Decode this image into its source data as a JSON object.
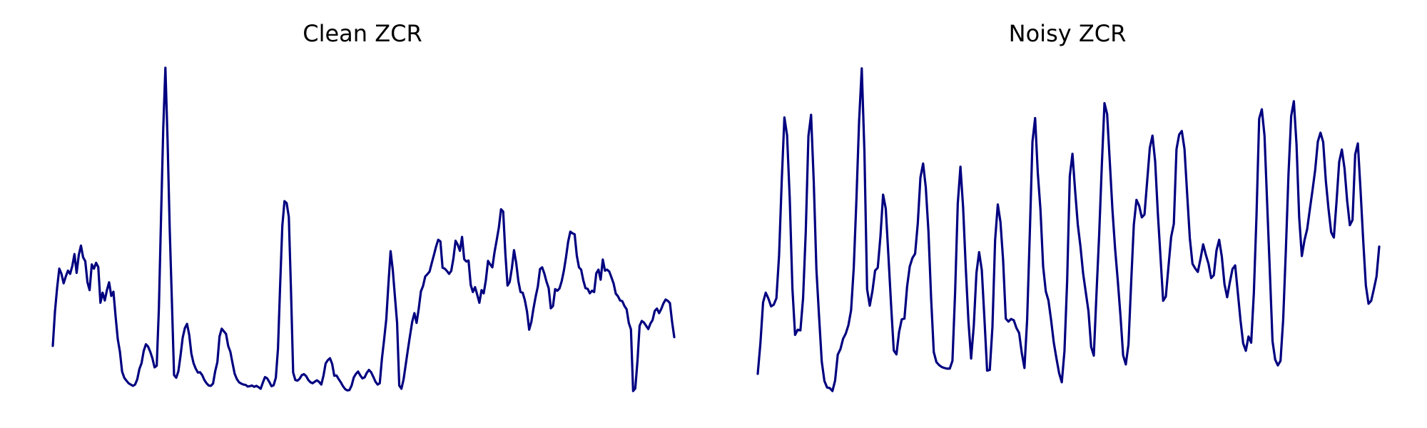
{
  "chart_data": [
    {
      "type": "line",
      "title": "Clean ZCR",
      "axes_visible": false,
      "line_color": "#000080",
      "y_range": [
        0.0,
        1.0
      ],
      "series": [
        {
          "values": [
            0.143,
            0.249,
            0.322,
            0.381,
            0.365,
            0.336,
            0.357,
            0.375,
            0.365,
            0.389,
            0.426,
            0.368,
            0.423,
            0.452,
            0.416,
            0.404,
            0.339,
            0.315,
            0.394,
            0.381,
            0.399,
            0.386,
            0.276,
            0.307,
            0.283,
            0.315,
            0.339,
            0.297,
            0.31,
            0.234,
            0.164,
            0.125,
            0.064,
            0.045,
            0.036,
            0.028,
            0.024,
            0.02,
            0.024,
            0.04,
            0.072,
            0.09,
            0.128,
            0.148,
            0.141,
            0.125,
            0.105,
            0.077,
            0.082,
            0.261,
            0.541,
            0.812,
            1.0,
            0.777,
            0.502,
            0.28,
            0.053,
            0.045,
            0.065,
            0.114,
            0.169,
            0.198,
            0.211,
            0.177,
            0.119,
            0.09,
            0.073,
            0.061,
            0.062,
            0.053,
            0.038,
            0.028,
            0.021,
            0.02,
            0.027,
            0.065,
            0.093,
            0.172,
            0.196,
            0.188,
            0.18,
            0.143,
            0.125,
            0.09,
            0.057,
            0.041,
            0.031,
            0.027,
            0.024,
            0.023,
            0.018,
            0.019,
            0.021,
            0.017,
            0.02,
            0.016,
            0.011,
            0.03,
            0.047,
            0.043,
            0.032,
            0.019,
            0.022,
            0.045,
            0.135,
            0.332,
            0.513,
            0.589,
            0.583,
            0.54,
            0.315,
            0.061,
            0.038,
            0.036,
            0.042,
            0.053,
            0.056,
            0.05,
            0.038,
            0.031,
            0.028,
            0.033,
            0.037,
            0.032,
            0.024,
            0.051,
            0.089,
            0.099,
            0.105,
            0.088,
            0.051,
            0.052,
            0.041,
            0.031,
            0.019,
            0.01,
            0.006,
            0.007,
            0.021,
            0.046,
            0.057,
            0.064,
            0.052,
            0.043,
            0.046,
            0.06,
            0.069,
            0.062,
            0.048,
            0.033,
            0.024,
            0.028,
            0.104,
            0.162,
            0.225,
            0.334,
            0.435,
            0.378,
            0.295,
            0.214,
            0.021,
            0.011,
            0.04,
            0.086,
            0.132,
            0.176,
            0.218,
            0.244,
            0.214,
            0.258,
            0.311,
            0.328,
            0.357,
            0.364,
            0.372,
            0.398,
            0.423,
            0.449,
            0.47,
            0.465,
            0.384,
            0.381,
            0.374,
            0.365,
            0.374,
            0.412,
            0.467,
            0.455,
            0.436,
            0.479,
            0.41,
            0.403,
            0.406,
            0.331,
            0.309,
            0.324,
            0.301,
            0.276,
            0.315,
            0.305,
            0.346,
            0.405,
            0.394,
            0.385,
            0.432,
            0.469,
            0.508,
            0.564,
            0.557,
            0.428,
            0.329,
            0.34,
            0.382,
            0.438,
            0.399,
            0.343,
            0.309,
            0.307,
            0.284,
            0.249,
            0.193,
            0.217,
            0.259,
            0.295,
            0.326,
            0.38,
            0.385,
            0.366,
            0.341,
            0.321,
            0.259,
            0.266,
            0.318,
            0.313,
            0.32,
            0.342,
            0.374,
            0.416,
            0.464,
            0.495,
            0.49,
            0.487,
            0.421,
            0.385,
            0.378,
            0.345,
            0.321,
            0.319,
            0.305,
            0.313,
            0.309,
            0.367,
            0.378,
            0.347,
            0.409,
            0.375,
            0.378,
            0.372,
            0.354,
            0.335,
            0.304,
            0.296,
            0.283,
            0.281,
            0.266,
            0.256,
            0.214,
            0.194,
            0.004,
            0.012,
            0.096,
            0.205,
            0.22,
            0.215,
            0.205,
            0.195,
            0.212,
            0.223,
            0.251,
            0.258,
            0.244,
            0.257,
            0.274,
            0.286,
            0.282,
            0.275,
            0.217,
            0.17
          ]
        }
      ]
    },
    {
      "type": "line",
      "title": "Noisy ZCR",
      "axes_visible": false,
      "line_color": "#000080",
      "y_range": [
        0.0,
        1.0
      ],
      "series": [
        {
          "values": [
            0.057,
            0.151,
            0.277,
            0.307,
            0.289,
            0.265,
            0.27,
            0.29,
            0.422,
            0.652,
            0.847,
            0.792,
            0.597,
            0.32,
            0.177,
            0.193,
            0.191,
            0.29,
            0.494,
            0.789,
            0.855,
            0.65,
            0.378,
            0.233,
            0.095,
            0.035,
            0.015,
            0.013,
            0.004,
            0.036,
            0.116,
            0.133,
            0.165,
            0.181,
            0.207,
            0.253,
            0.384,
            0.594,
            0.835,
            0.998,
            0.741,
            0.318,
            0.267,
            0.312,
            0.375,
            0.384,
            0.48,
            0.609,
            0.566,
            0.42,
            0.269,
            0.129,
            0.117,
            0.186,
            0.225,
            0.227,
            0.326,
            0.388,
            0.414,
            0.427,
            0.52,
            0.662,
            0.705,
            0.632,
            0.497,
            0.291,
            0.124,
            0.093,
            0.084,
            0.078,
            0.075,
            0.073,
            0.073,
            0.097,
            0.308,
            0.582,
            0.695,
            0.57,
            0.383,
            0.219,
            0.104,
            0.205,
            0.368,
            0.432,
            0.377,
            0.226,
            0.067,
            0.069,
            0.202,
            0.469,
            0.579,
            0.525,
            0.407,
            0.227,
            0.218,
            0.226,
            0.222,
            0.198,
            0.183,
            0.121,
            0.075,
            0.223,
            0.488,
            0.772,
            0.845,
            0.676,
            0.563,
            0.388,
            0.311,
            0.283,
            0.222,
            0.153,
            0.104,
            0.059,
            0.031,
            0.127,
            0.342,
            0.666,
            0.735,
            0.621,
            0.517,
            0.449,
            0.366,
            0.308,
            0.25,
            0.14,
            0.113,
            0.303,
            0.484,
            0.698,
            0.891,
            0.857,
            0.71,
            0.561,
            0.441,
            0.343,
            0.236,
            0.114,
            0.086,
            0.148,
            0.337,
            0.516,
            0.593,
            0.575,
            0.539,
            0.548,
            0.65,
            0.753,
            0.791,
            0.712,
            0.553,
            0.418,
            0.282,
            0.295,
            0.388,
            0.479,
            0.519,
            0.749,
            0.794,
            0.805,
            0.75,
            0.611,
            0.475,
            0.396,
            0.382,
            0.371,
            0.411,
            0.456,
            0.424,
            0.396,
            0.352,
            0.361,
            0.437,
            0.47,
            0.418,
            0.333,
            0.293,
            0.339,
            0.38,
            0.391,
            0.307,
            0.222,
            0.151,
            0.128,
            0.172,
            0.153,
            0.305,
            0.545,
            0.843,
            0.872,
            0.791,
            0.581,
            0.373,
            0.158,
            0.101,
            0.083,
            0.097,
            0.224,
            0.437,
            0.673,
            0.851,
            0.897,
            0.764,
            0.539,
            0.42,
            0.469,
            0.503,
            0.564,
            0.623,
            0.685,
            0.773,
            0.8,
            0.771,
            0.651,
            0.565,
            0.493,
            0.477,
            0.587,
            0.71,
            0.748,
            0.69,
            0.589,
            0.515,
            0.531,
            0.733,
            0.767,
            0.624,
            0.469,
            0.329,
            0.273,
            0.282,
            0.318,
            0.357,
            0.449
          ]
        }
      ]
    }
  ]
}
